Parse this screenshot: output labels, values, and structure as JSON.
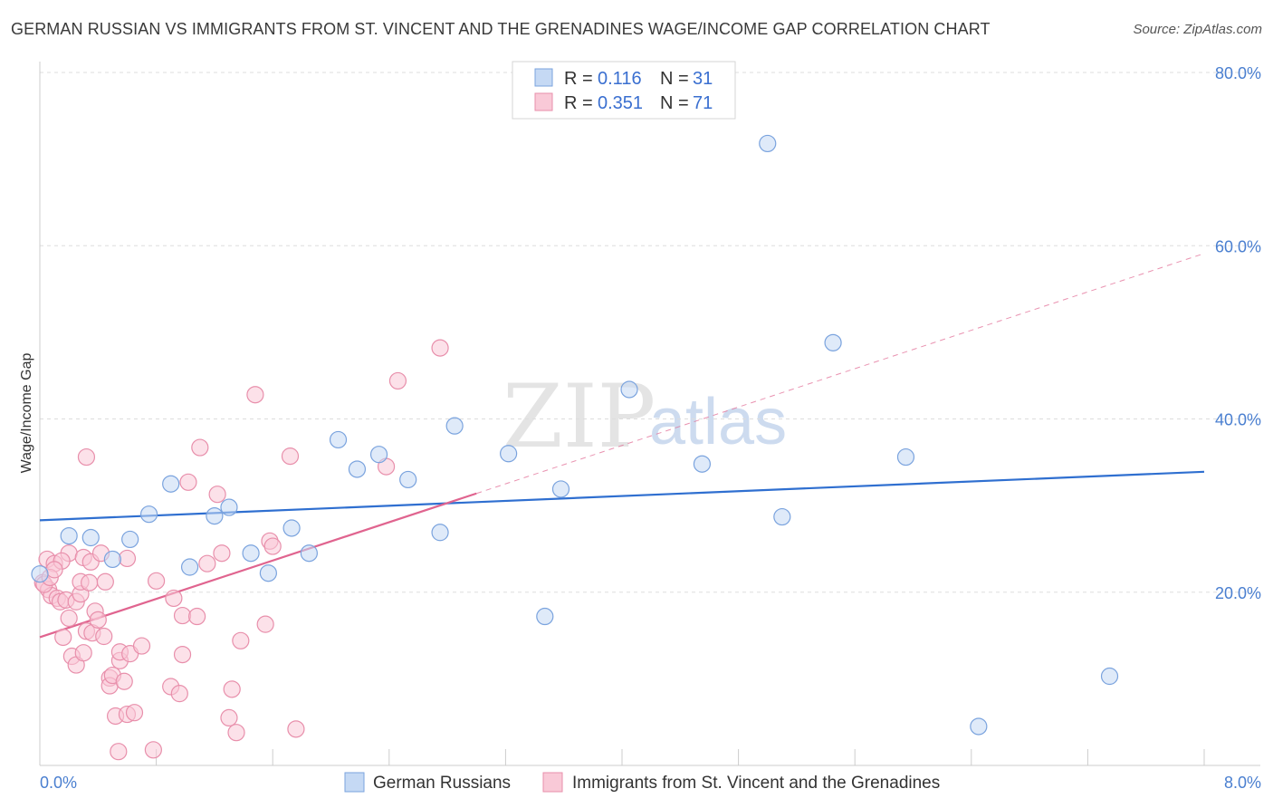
{
  "title": "GERMAN RUSSIAN VS IMMIGRANTS FROM ST. VINCENT AND THE GRENADINES WAGE/INCOME GAP CORRELATION CHART",
  "source": "Source: ZipAtlas.com",
  "watermark": {
    "zip": "ZIP",
    "atlas": "atlas"
  },
  "legend_top": [
    {
      "r_label": "R = ",
      "r_value": "0.116",
      "n_label": "N = ",
      "n_value": "31",
      "fill": "#c5d9f4",
      "stroke": "#7aa3de"
    },
    {
      "r_label": "R = ",
      "r_value": "0.351",
      "n_label": "N = ",
      "n_value": "71",
      "fill": "#f9c9d7",
      "stroke": "#e88fab"
    }
  ],
  "chart_data": {
    "type": "scatter",
    "title": "GERMAN RUSSIAN VS IMMIGRANTS FROM ST. VINCENT AND THE GRENADINES WAGE/INCOME GAP CORRELATION CHART",
    "xlabel": "",
    "ylabel": "Wage/Income Gap",
    "xlim": [
      0,
      8
    ],
    "ylim": [
      0,
      80
    ],
    "x_tick_labels": [
      {
        "value": 0,
        "label": "0.0%"
      },
      {
        "value": 8,
        "label": "8.0%"
      }
    ],
    "y_tick_labels": [
      {
        "value": 20,
        "label": "20.0%"
      },
      {
        "value": 40,
        "label": "40.0%"
      },
      {
        "value": 60,
        "label": "60.0%"
      },
      {
        "value": 80,
        "label": "80.0%"
      }
    ],
    "y_gridlines": [
      20,
      40,
      60,
      80
    ],
    "series": [
      {
        "name": "German Russians",
        "color": "#7aa3de",
        "fill": "#c5d9f4",
        "line_color": "#2f6fd0",
        "trend": {
          "x": [
            0,
            8
          ],
          "y": [
            28.3,
            33.9
          ],
          "dashed_extension": false
        },
        "points": [
          [
            0.0,
            22.1
          ],
          [
            0.2,
            26.5
          ],
          [
            0.35,
            26.3
          ],
          [
            0.5,
            23.8
          ],
          [
            0.62,
            26.1
          ],
          [
            0.75,
            29.0
          ],
          [
            0.9,
            32.5
          ],
          [
            1.03,
            22.9
          ],
          [
            1.2,
            28.8
          ],
          [
            1.3,
            29.8
          ],
          [
            1.45,
            24.5
          ],
          [
            1.57,
            22.2
          ],
          [
            1.73,
            27.4
          ],
          [
            1.85,
            24.5
          ],
          [
            2.05,
            37.6
          ],
          [
            2.18,
            34.2
          ],
          [
            2.33,
            35.9
          ],
          [
            2.53,
            33.0
          ],
          [
            2.75,
            26.9
          ],
          [
            2.85,
            39.2
          ],
          [
            3.22,
            36.0
          ],
          [
            3.47,
            17.2
          ],
          [
            3.58,
            31.9
          ],
          [
            4.05,
            43.4
          ],
          [
            4.55,
            34.8
          ],
          [
            5.0,
            71.8
          ],
          [
            5.1,
            28.7
          ],
          [
            5.45,
            48.8
          ],
          [
            5.95,
            35.6
          ],
          [
            6.45,
            4.5
          ],
          [
            7.35,
            10.3
          ]
        ]
      },
      {
        "name": "Immigrants from St. Vincent and the Grenadines",
        "color": "#e88fab",
        "fill": "#f9c9d7",
        "line_color": "#e0648f",
        "trend": {
          "x": [
            0,
            3.0
          ],
          "y": [
            14.8,
            31.4
          ],
          "dashed_to": {
            "x": 8,
            "y": 59.1
          }
        },
        "points": [
          [
            0.02,
            21.1
          ],
          [
            0.05,
            23.8
          ],
          [
            0.06,
            20.3
          ],
          [
            0.08,
            19.6
          ],
          [
            0.1,
            23.3
          ],
          [
            0.12,
            19.3
          ],
          [
            0.14,
            18.9
          ],
          [
            0.16,
            14.8
          ],
          [
            0.18,
            19.1
          ],
          [
            0.2,
            17.0
          ],
          [
            0.2,
            24.5
          ],
          [
            0.22,
            12.6
          ],
          [
            0.25,
            18.9
          ],
          [
            0.25,
            11.6
          ],
          [
            0.28,
            19.8
          ],
          [
            0.28,
            21.2
          ],
          [
            0.3,
            24.0
          ],
          [
            0.3,
            13.0
          ],
          [
            0.32,
            15.5
          ],
          [
            0.32,
            35.6
          ],
          [
            0.34,
            21.1
          ],
          [
            0.35,
            23.5
          ],
          [
            0.36,
            15.3
          ],
          [
            0.38,
            17.8
          ],
          [
            0.4,
            16.8
          ],
          [
            0.42,
            24.5
          ],
          [
            0.44,
            14.9
          ],
          [
            0.45,
            21.2
          ],
          [
            0.48,
            10.1
          ],
          [
            0.48,
            9.2
          ],
          [
            0.5,
            10.4
          ],
          [
            0.52,
            5.7
          ],
          [
            0.54,
            1.6
          ],
          [
            0.55,
            12.1
          ],
          [
            0.55,
            13.1
          ],
          [
            0.58,
            9.7
          ],
          [
            0.6,
            23.9
          ],
          [
            0.6,
            5.9
          ],
          [
            0.62,
            12.9
          ],
          [
            0.65,
            6.1
          ],
          [
            0.7,
            13.8
          ],
          [
            0.78,
            1.8
          ],
          [
            0.8,
            21.3
          ],
          [
            0.9,
            9.1
          ],
          [
            0.92,
            19.3
          ],
          [
            0.96,
            8.3
          ],
          [
            0.98,
            17.3
          ],
          [
            0.98,
            12.8
          ],
          [
            1.02,
            32.7
          ],
          [
            1.08,
            17.2
          ],
          [
            1.1,
            36.7
          ],
          [
            1.15,
            23.3
          ],
          [
            1.22,
            31.3
          ],
          [
            1.25,
            24.5
          ],
          [
            1.3,
            5.5
          ],
          [
            1.32,
            8.8
          ],
          [
            1.35,
            3.8
          ],
          [
            1.38,
            14.4
          ],
          [
            1.48,
            42.8
          ],
          [
            1.55,
            16.3
          ],
          [
            1.58,
            25.9
          ],
          [
            1.6,
            25.3
          ],
          [
            1.72,
            35.7
          ],
          [
            1.76,
            4.2
          ],
          [
            2.38,
            34.5
          ],
          [
            2.46,
            44.4
          ],
          [
            2.75,
            48.2
          ],
          [
            0.03,
            20.9
          ],
          [
            0.07,
            21.7
          ],
          [
            0.15,
            23.6
          ],
          [
            0.1,
            22.6
          ]
        ]
      }
    ]
  },
  "bottom_legend": [
    "German Russians",
    "Immigrants from St. Vincent and the Grenadines"
  ]
}
